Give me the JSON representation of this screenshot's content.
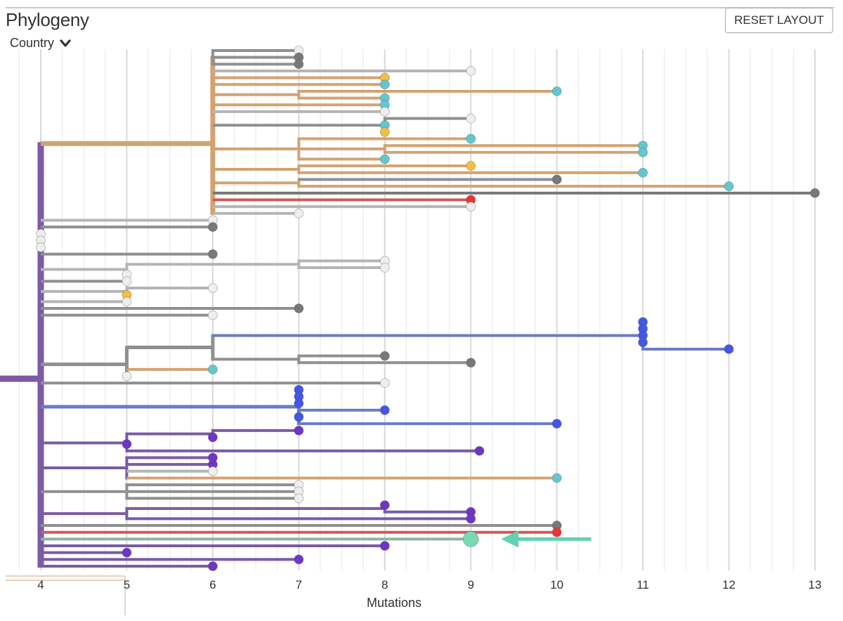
{
  "header": {
    "title": "Phylogeny",
    "color_by_label": "Country",
    "reset_label": "RESET LAYOUT"
  },
  "colors": {
    "purple": "#7b5aa6",
    "dark_purple": "#6e36c2",
    "tan": "#d4a271",
    "cyan": "#62c7d0",
    "gray": "#8f8f8f",
    "dark_gray": "#787878",
    "light_gray": "#b5b5b5",
    "white": "#eeeeee",
    "blue": "#6b7ac8",
    "bright_blue": "#4356e8",
    "red": "#d05858",
    "bright_red": "#ee3333",
    "yellow": "#f6be40",
    "green": "#8ab5a2",
    "mint": "#78dab4",
    "arrow": "#62d2b0",
    "grid_major": "#d9d9d9",
    "grid_minor": "#ececec"
  },
  "chart_data": {
    "type": "phylogenetic-tree",
    "title": "Phylogeny",
    "xlabel": "Mutations",
    "ylabel": "",
    "xlim": [
      3.65,
      13.15
    ],
    "x_ticks": [
      4,
      5,
      6,
      7,
      8,
      9,
      10,
      11,
      12,
      13
    ],
    "grid": true,
    "color_by": "Country",
    "tree": {
      "x": 3.4,
      "c": "purple",
      "w": 9,
      "children": [
        {
          "x": 4.0,
          "c": "purple",
          "w": 9,
          "children": [
            {
              "x": 6.0,
              "c": "tan",
              "w": 7,
              "children": [
                {
                  "x": 6.0,
                  "c": "gray",
                  "children": [
                    {
                      "x": 7,
                      "c": "gray",
                      "tip": "white"
                    },
                    {
                      "x": 7,
                      "c": "gray",
                      "tip": "dark_gray"
                    },
                    {
                      "x": 7,
                      "c": "gray",
                      "tip": "dark_gray"
                    }
                  ]
                },
                {
                  "x": 9.0,
                  "c": "light_gray",
                  "tip": "white"
                },
                {
                  "x": 6.0,
                  "c": "tan",
                  "w": 5,
                  "children": [
                    {
                      "x": 8,
                      "c": "tan",
                      "tip": "yellow"
                    },
                    {
                      "x": 8,
                      "c": "tan",
                      "tip": "cyan"
                    },
                    {
                      "x": 7,
                      "c": "tan",
                      "children": [
                        {
                          "x": 10,
                          "c": "tan",
                          "tip": "cyan"
                        },
                        {
                          "x": 8,
                          "c": "tan",
                          "tip": "cyan"
                        }
                      ]
                    },
                    {
                      "x": 8,
                      "c": "tan",
                      "tip": "cyan"
                    }
                  ]
                },
                {
                  "x": 8,
                  "c": "light_gray",
                  "tip": "white"
                },
                {
                  "x": 8,
                  "c": "gray",
                  "children": [
                    {
                      "x": 9,
                      "c": "gray",
                      "tip": "white"
                    },
                    {
                      "x": 8,
                      "c": "gray",
                      "tip": "cyan"
                    },
                    {
                      "x": 8,
                      "c": "tan",
                      "tip": "yellow"
                    }
                  ]
                },
                {
                  "x": 6.0,
                  "c": "tan",
                  "w": 5,
                  "children": [
                    {
                      "x": 7,
                      "c": "tan",
                      "children": [
                        {
                          "x": 9,
                          "c": "tan",
                          "tip": "cyan"
                        },
                        {
                          "x": 8,
                          "c": "tan",
                          "children": [
                            {
                              "x": 11,
                              "c": "tan",
                              "tip": "cyan"
                            },
                            {
                              "x": 11,
                              "c": "tan",
                              "tip": "cyan"
                            }
                          ]
                        },
                        {
                          "x": 8,
                          "c": "tan",
                          "tip": "cyan"
                        }
                      ]
                    },
                    {
                      "x": 7,
                      "c": "tan",
                      "children": [
                        {
                          "x": 9,
                          "c": "tan",
                          "tip": "yellow"
                        },
                        {
                          "x": 11,
                          "c": "tan",
                          "tip": "cyan"
                        }
                      ]
                    },
                    {
                      "x": 7,
                      "c": "tan",
                      "children": [
                        {
                          "x": 10,
                          "c": "gray",
                          "tip": "dark_gray"
                        },
                        {
                          "x": 12,
                          "c": "tan",
                          "tip": "cyan"
                        }
                      ]
                    }
                  ]
                },
                {
                  "x": 13,
                  "c": "dark_gray",
                  "tip": "dark_gray"
                },
                {
                  "x": 9,
                  "c": "red",
                  "tip": "bright_red"
                },
                {
                  "x": 9,
                  "c": "light_gray",
                  "tip": "white"
                },
                {
                  "x": 7,
                  "c": "light_gray",
                  "tip": "white"
                }
              ]
            },
            {
              "x": 6,
              "c": "light_gray",
              "tip": "white"
            },
            {
              "x": 6,
              "c": "gray",
              "tip": "dark_gray"
            },
            {
              "x": 4,
              "c": "light_gray",
              "tip": "white"
            },
            {
              "x": 4,
              "c": "light_gray",
              "tip": "white"
            },
            {
              "x": 4,
              "c": "light_gray",
              "tip": "white"
            },
            {
              "x": 6,
              "c": "gray",
              "tip": "dark_gray"
            },
            {
              "x": 5,
              "c": "light_gray",
              "children": [
                {
                  "x": 7,
                  "c": "light_gray",
                  "children": [
                    {
                      "x": 8,
                      "c": "light_gray",
                      "tip": "white"
                    },
                    {
                      "x": 8,
                      "c": "light_gray",
                      "tip": "white"
                    }
                  ]
                },
                {
                  "x": 5,
                  "c": "light_gray",
                  "tip": "white"
                }
              ]
            },
            {
              "x": 5,
              "c": "gray",
              "tip": "white"
            },
            {
              "x": 5,
              "c": "light_gray",
              "children": [
                {
                  "x": 6,
                  "c": "light_gray",
                  "tip": "white"
                },
                {
                  "x": 5,
                  "c": "tan",
                  "tip": "yellow"
                }
              ]
            },
            {
              "x": 5,
              "c": "light_gray",
              "tip": "white"
            },
            {
              "x": 7,
              "c": "gray",
              "tip": "dark_gray"
            },
            {
              "x": 6,
              "c": "gray",
              "tip": "white"
            },
            {
              "x": 5,
              "c": "gray",
              "w": 5,
              "children": [
                {
                  "x": 6,
                  "c": "gray",
                  "w": 5,
                  "children": [
                    {
                      "x": 11,
                      "c": "blue",
                      "children": [
                        {
                          "x": 11,
                          "c": "blue",
                          "tip": "bright_blue"
                        },
                        {
                          "x": 11,
                          "c": "blue",
                          "tip": "bright_blue"
                        },
                        {
                          "x": 11,
                          "c": "blue",
                          "tip": "bright_blue"
                        },
                        {
                          "x": 11,
                          "c": "blue",
                          "tip": "bright_blue"
                        },
                        {
                          "x": 12,
                          "c": "blue",
                          "tip": "bright_blue"
                        }
                      ]
                    },
                    {
                      "x": 7,
                      "c": "gray",
                      "children": [
                        {
                          "x": 8,
                          "c": "gray",
                          "tip": "dark_gray"
                        },
                        {
                          "x": 9,
                          "c": "gray",
                          "tip": "dark_gray"
                        }
                      ]
                    }
                  ]
                },
                {
                  "x": 6,
                  "c": "tan",
                  "tip": "cyan"
                },
                {
                  "x": 5,
                  "c": "light_gray",
                  "tip": "white"
                }
              ]
            },
            {
              "x": 8,
              "c": "gray",
              "tip": "white"
            },
            {
              "x": 7,
              "c": "blue",
              "w": 5,
              "children": [
                {
                  "x": 7,
                  "c": "blue",
                  "tip": "bright_blue"
                },
                {
                  "x": 7,
                  "c": "blue",
                  "tip": "bright_blue"
                },
                {
                  "x": 7,
                  "c": "blue",
                  "tip": "bright_blue"
                },
                {
                  "x": 8,
                  "c": "blue",
                  "tip": "bright_blue"
                },
                {
                  "x": 7,
                  "c": "blue",
                  "tip": "bright_blue"
                },
                {
                  "x": 10,
                  "c": "blue",
                  "tip": "bright_blue"
                }
              ]
            },
            {
              "x": 5,
              "c": "purple",
              "children": [
                {
                  "x": 6,
                  "c": "purple",
                  "children": [
                    {
                      "x": 7,
                      "c": "purple",
                      "tip": "dark_purple"
                    },
                    {
                      "x": 6,
                      "c": "purple",
                      "tip": "dark_purple"
                    }
                  ]
                },
                {
                  "x": 5,
                  "c": "purple",
                  "tip": "dark_purple"
                },
                {
                  "x": 9.1,
                  "c": "purple",
                  "tip": "dark_purple"
                }
              ]
            },
            {
              "x": 5,
              "c": "purple",
              "children": [
                {
                  "x": 6,
                  "c": "purple",
                  "tip": "dark_purple"
                },
                {
                  "x": 6,
                  "c": "purple",
                  "tip": "dark_purple"
                },
                {
                  "x": 6,
                  "c": "light_gray",
                  "tip": "white"
                },
                {
                  "x": 10,
                  "c": "tan",
                  "tip": "cyan"
                }
              ]
            },
            {
              "x": 5,
              "c": "gray",
              "children": [
                {
                  "x": 7,
                  "c": "gray",
                  "tip": "white"
                },
                {
                  "x": 7,
                  "c": "gray",
                  "tip": "white"
                },
                {
                  "x": 7,
                  "c": "gray",
                  "tip": "white"
                }
              ]
            },
            {
              "x": 5,
              "c": "purple",
              "children": [
                {
                  "x": 8,
                  "c": "purple",
                  "children": [
                    {
                      "x": 8,
                      "c": "purple",
                      "tip": "dark_purple"
                    },
                    {
                      "x": 9,
                      "c": "purple",
                      "tip": "dark_purple"
                    }
                  ]
                },
                {
                  "x": 9,
                  "c": "purple",
                  "tip": "dark_purple"
                }
              ]
            },
            {
              "x": 10,
              "c": "gray",
              "tip": "dark_gray"
            },
            {
              "x": 10,
              "c": "red",
              "tip": "bright_red"
            },
            {
              "x": 9,
              "c": "green",
              "tip": "mint",
              "big": true
            },
            {
              "x": 8,
              "c": "purple",
              "tip": "dark_purple"
            },
            {
              "x": 5,
              "c": "purple",
              "tip": "dark_purple"
            },
            {
              "x": 7,
              "c": "purple",
              "tip": "dark_purple"
            },
            {
              "x": 6,
              "c": "purple",
              "tip": "dark_purple"
            }
          ]
        }
      ]
    },
    "highlight_arrow": {
      "target": "mint tip at 9 mutations",
      "from_x": 10.4,
      "to_x": 9.35
    }
  }
}
